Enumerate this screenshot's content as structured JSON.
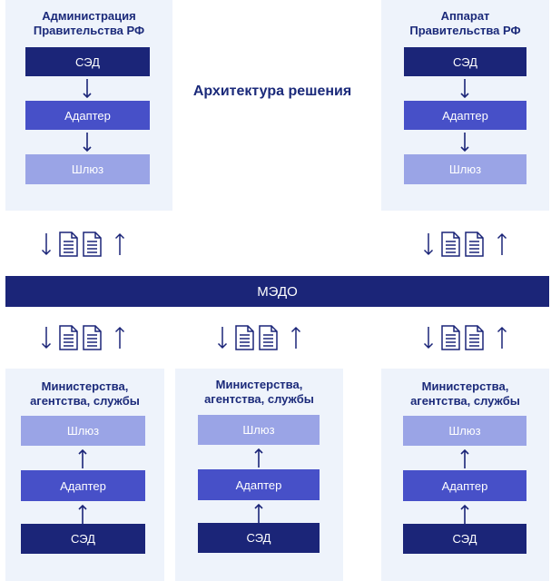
{
  "title": "Архитектура решения",
  "top_left": {
    "title": "Администрация Правительства РФ",
    "sed": "СЭД",
    "adapter": "Адаптер",
    "gateway": "Шлюз"
  },
  "top_right": {
    "title": "Аппарат Правительства РФ",
    "sed": "СЭД",
    "adapter": "Адаптер",
    "gateway": "Шлюз"
  },
  "bus": {
    "label": "МЭДО"
  },
  "bottom": [
    {
      "title": "Министерства, агентства, службы",
      "gateway": "Шлюз",
      "adapter": "Адаптер",
      "sed": "СЭД"
    },
    {
      "title": "Министерства, агентства, службы",
      "gateway": "Шлюз",
      "adapter": "Адаптер",
      "sed": "СЭД"
    },
    {
      "title": "Министерства, агентства, службы",
      "gateway": "Шлюз",
      "adapter": "Адаптер",
      "sed": "СЭД"
    }
  ],
  "icons": {
    "arrow": "arrow-icon",
    "document": "document-icon"
  },
  "colors": {
    "sed": "#1b2578",
    "adapter": "#4750c8",
    "gateway": "#9aa4e6",
    "panel": "#eef3fb",
    "title": "#1b2a7a"
  }
}
